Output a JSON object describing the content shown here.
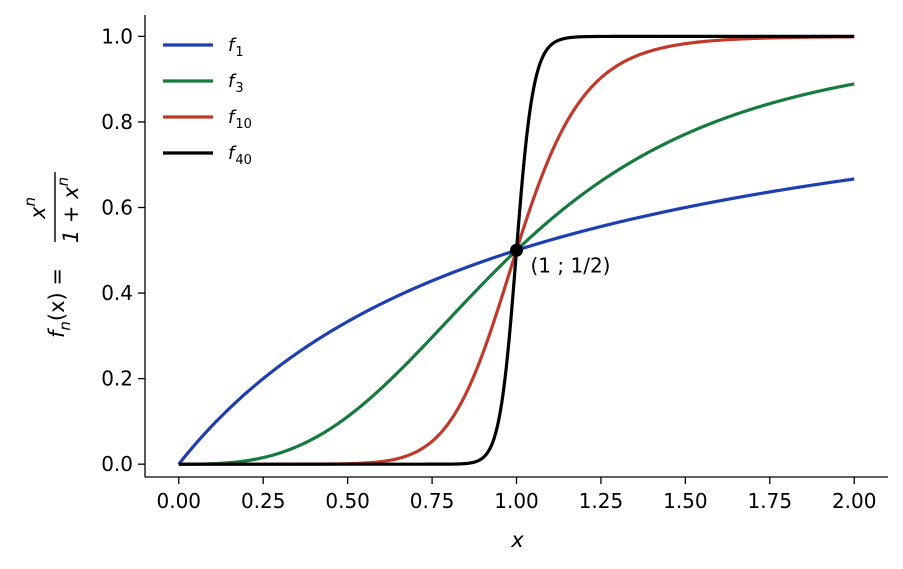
{
  "chart_data": {
    "type": "line",
    "x_range": [
      0,
      2
    ],
    "xlim": [
      -0.1,
      2.1
    ],
    "ylim": [
      -0.03,
      1.05
    ],
    "xlabel": "x",
    "ylabel": {
      "lhs": "f",
      "lhs_sub": "n",
      "lhs_arg": "(x) =",
      "numerator": "x",
      "numerator_sup": "n",
      "denominator": "1 + x",
      "denominator_sup": "n"
    },
    "x_ticks": [
      "0.00",
      "0.25",
      "0.50",
      "0.75",
      "1.00",
      "1.25",
      "1.50",
      "1.75",
      "2.00"
    ],
    "y_ticks": [
      "0.0",
      "0.2",
      "0.4",
      "0.6",
      "0.8",
      "1.0"
    ],
    "legend_position": "top-left",
    "series": [
      {
        "name": "f",
        "sub": "1",
        "n": 1,
        "color": "#1f3fb0"
      },
      {
        "name": "f",
        "sub": "3",
        "n": 3,
        "color": "#177a3e"
      },
      {
        "name": "f",
        "sub": "10",
        "n": 10,
        "color": "#c0392b"
      },
      {
        "name": "f",
        "sub": "40",
        "n": 40,
        "color": "#000000"
      }
    ],
    "point": {
      "x": 1,
      "y": 0.5,
      "label": "(1 ; 1/2)"
    },
    "grid": false
  }
}
